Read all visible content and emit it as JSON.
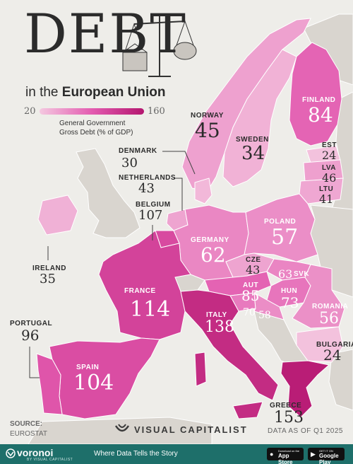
{
  "title": {
    "big": "DEBT",
    "sub_prefix": "in the",
    "sub_bold": "European Union"
  },
  "legend": {
    "min": "20",
    "max": "160",
    "caption_line1": "General Government",
    "caption_line2": "Gross Debt (% of GDP)"
  },
  "colors": {
    "water": "#eeede9",
    "non_eu": "#d9d5cf",
    "low": "#f4c8e0",
    "mid": "#e35bb0",
    "high": "#b4166f"
  },
  "countries": [
    {
      "id": "norway",
      "name": "NORWAY",
      "value": "45",
      "debt": 45,
      "eu": false
    },
    {
      "id": "finland",
      "name": "FINLAND",
      "value": "84",
      "debt": 84,
      "eu": true
    },
    {
      "id": "sweden",
      "name": "SWEDEN",
      "value": "34",
      "debt": 34,
      "eu": true
    },
    {
      "id": "est",
      "name": "EST",
      "value": "24",
      "debt": 24,
      "eu": true
    },
    {
      "id": "lva",
      "name": "LVA",
      "value": "46",
      "debt": 46,
      "eu": true
    },
    {
      "id": "ltu",
      "name": "LTU",
      "value": "41",
      "debt": 41,
      "eu": true
    },
    {
      "id": "denmark",
      "name": "DENMARK",
      "value": "30",
      "debt": 30,
      "eu": true
    },
    {
      "id": "netherlands",
      "name": "NETHERLANDS",
      "value": "43",
      "debt": 43,
      "eu": true
    },
    {
      "id": "belgium",
      "name": "BELGIUM",
      "value": "107",
      "debt": 107,
      "eu": true
    },
    {
      "id": "poland",
      "name": "POLAND",
      "value": "57",
      "debt": 57,
      "eu": true
    },
    {
      "id": "germany",
      "name": "GERMANY",
      "value": "62",
      "debt": 62,
      "eu": true
    },
    {
      "id": "ireland",
      "name": "IRELAND",
      "value": "35",
      "debt": 35,
      "eu": true
    },
    {
      "id": "cze",
      "name": "CZE",
      "value": "43",
      "debt": 43,
      "eu": true
    },
    {
      "id": "svk",
      "name": "SVK",
      "value": "63",
      "debt": 63,
      "eu": true
    },
    {
      "id": "aut",
      "name": "AUT",
      "value": "85",
      "debt": 85,
      "eu": true
    },
    {
      "id": "hun",
      "name": "HUN",
      "value": "73",
      "debt": 73,
      "eu": true
    },
    {
      "id": "romania",
      "name": "ROMANIA",
      "value": "56",
      "debt": 56,
      "eu": true
    },
    {
      "id": "france",
      "name": "FRANCE",
      "value": "114",
      "debt": 114,
      "eu": true
    },
    {
      "id": "slovenia",
      "name": "",
      "value": "70",
      "debt": 70,
      "eu": true
    },
    {
      "id": "croatia",
      "name": "",
      "value": "58",
      "debt": 58,
      "eu": true
    },
    {
      "id": "italy",
      "name": "ITALY",
      "value": "138",
      "debt": 138,
      "eu": true
    },
    {
      "id": "portugal",
      "name": "PORTUGAL",
      "value": "96",
      "debt": 96,
      "eu": true
    },
    {
      "id": "bulgaria",
      "name": "BULGARIA",
      "value": "24",
      "debt": 24,
      "eu": true
    },
    {
      "id": "spain",
      "name": "SPAIN",
      "value": "104",
      "debt": 104,
      "eu": true
    },
    {
      "id": "greece",
      "name": "GREECE",
      "value": "153",
      "debt": 153,
      "eu": true
    }
  ],
  "source": {
    "label": "SOURCE:",
    "value": "EUROSTAT"
  },
  "brand": "VISUAL CAPITALIST",
  "as_of": "DATA AS OF Q1 2025",
  "footer": {
    "logo": "voronoi",
    "logo_sub": "BY VISUAL CAPITALIST",
    "tagline": "Where Data Tells the Story",
    "appstore_small": "Download on the",
    "appstore_big": "App Store",
    "playstore_small": "GET IT ON",
    "playstore_big": "Google Play"
  }
}
